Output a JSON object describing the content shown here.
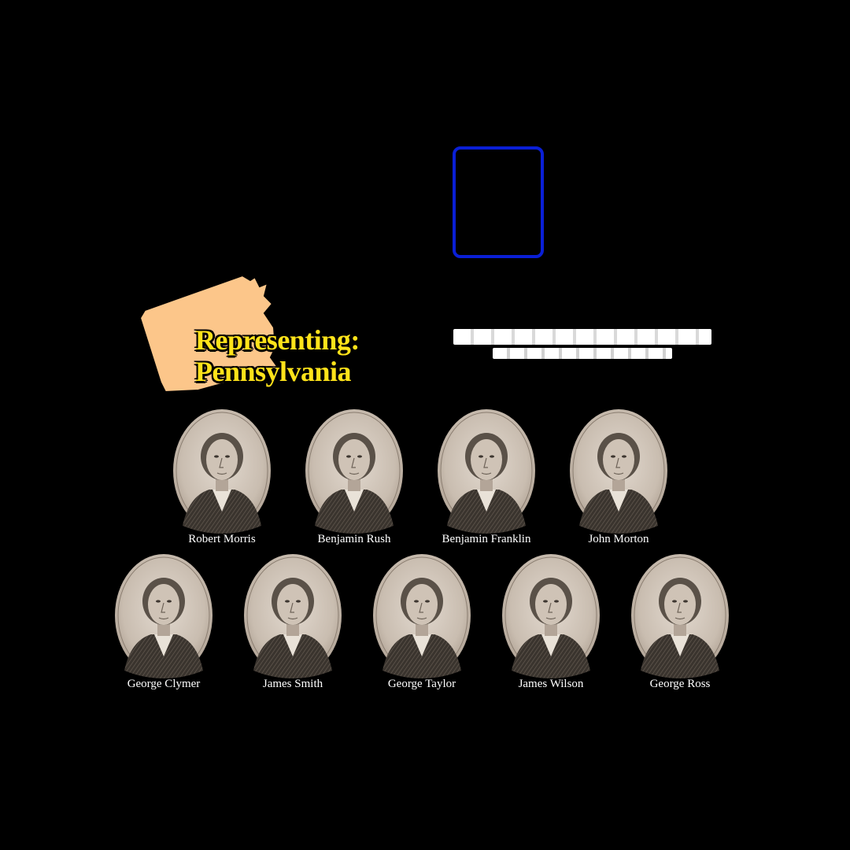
{
  "representing": {
    "line1": "Representing:",
    "line2": "Pennsylvania",
    "state_color": "#fcc68a",
    "text_color": "#ffe31a"
  },
  "frame_color": "#0a1fd6",
  "signers_row1": [
    {
      "name": "Robert Morris"
    },
    {
      "name": "Benjamin Rush"
    },
    {
      "name": "Benjamin Franklin"
    },
    {
      "name": "John Morton"
    }
  ],
  "signers_row2": [
    {
      "name": "George Clymer"
    },
    {
      "name": "James Smith"
    },
    {
      "name": "George Taylor"
    },
    {
      "name": "James Wilson"
    },
    {
      "name": "George Ross"
    }
  ]
}
